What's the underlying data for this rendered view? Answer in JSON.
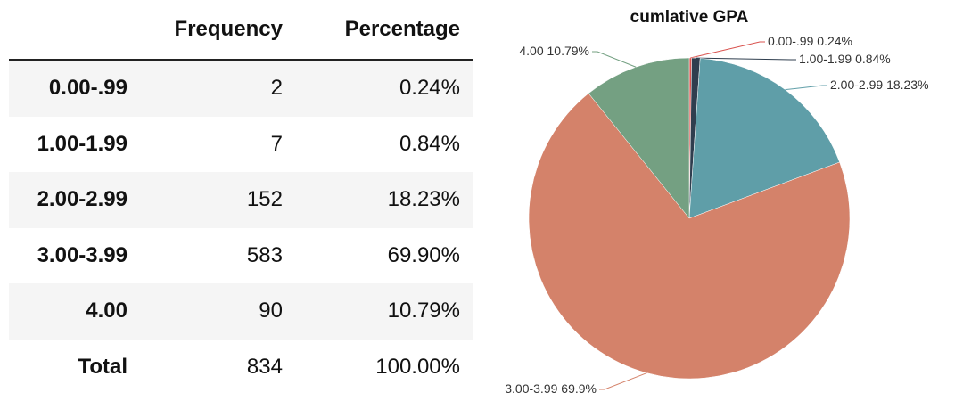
{
  "table": {
    "header": [
      "Frequency",
      "Percentage"
    ],
    "rows": [
      [
        "0.00-.99",
        "2",
        "0.24%"
      ],
      [
        "1.00-1.99",
        "7",
        "0.84%"
      ],
      [
        "2.00-2.99",
        "152",
        "18.23%"
      ],
      [
        "3.00-3.99",
        "583",
        "69.90%"
      ],
      [
        "4.00",
        "90",
        "10.79%"
      ],
      [
        "Total",
        "834",
        "100.00%"
      ]
    ]
  },
  "chart_data": {
    "type": "pie",
    "title": "cumlative GPA",
    "categories": [
      "0.00-.99",
      "1.00-1.99",
      "2.00-2.99",
      "3.00-3.99",
      "4.00"
    ],
    "values": [
      0.24,
      0.84,
      18.23,
      69.9,
      10.79
    ],
    "value_labels": [
      "0.24%",
      "0.84%",
      "18.23%",
      "69.9%",
      "10.79%"
    ],
    "colors": [
      "#d9534f",
      "#2f3e4e",
      "#5f9ea8",
      "#d4826a",
      "#74a082"
    ]
  }
}
